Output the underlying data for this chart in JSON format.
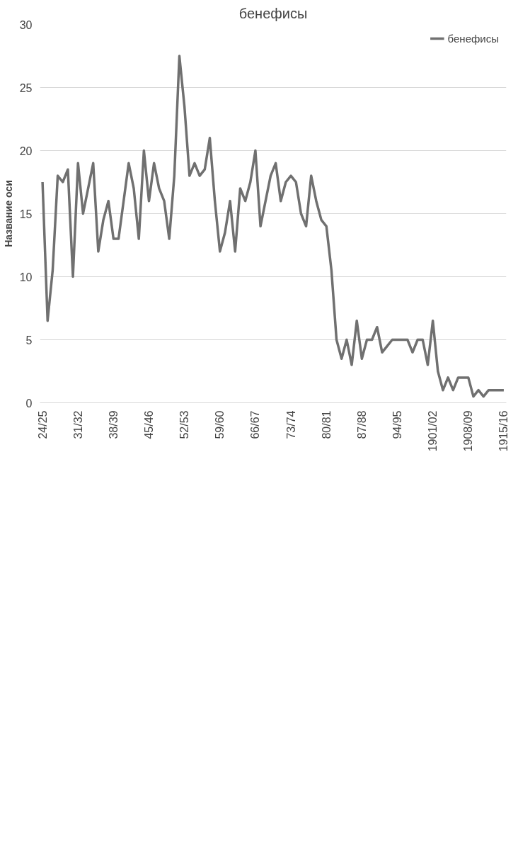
{
  "chart_data": {
    "type": "line",
    "title": "бенефисы",
    "ylabel": "Название оси",
    "categories": [
      "24/25",
      null,
      null,
      null,
      null,
      null,
      null,
      "31/32",
      null,
      null,
      null,
      null,
      null,
      null,
      "38/39",
      null,
      null,
      null,
      null,
      null,
      null,
      "45/46",
      null,
      null,
      null,
      null,
      null,
      null,
      "52/53",
      null,
      null,
      null,
      null,
      null,
      null,
      "59/60",
      null,
      null,
      null,
      null,
      null,
      null,
      "66/67",
      null,
      null,
      null,
      null,
      null,
      null,
      "73/74",
      null,
      null,
      null,
      null,
      null,
      null,
      "80/81",
      null,
      null,
      null,
      null,
      null,
      null,
      "87/88",
      null,
      null,
      null,
      null,
      null,
      null,
      "94/95",
      null,
      null,
      null,
      null,
      null,
      null,
      "1901/02",
      null,
      null,
      null,
      null,
      null,
      null,
      "1908/09",
      null,
      null,
      null,
      null,
      null,
      null,
      "1915/16"
    ],
    "series": [
      {
        "name": "бенефисы",
        "color": "#707070",
        "values": [
          17.5,
          6.5,
          10.5,
          18,
          17.5,
          18.5,
          10,
          19,
          15,
          17,
          19,
          12,
          14.5,
          16,
          13,
          13,
          16,
          19,
          17,
          13,
          20,
          16,
          19,
          17,
          16,
          13,
          18,
          27.5,
          23.5,
          18,
          19,
          18,
          18.5,
          21,
          16,
          12,
          13.5,
          16,
          12,
          17,
          16,
          17.5,
          20,
          14,
          16,
          18,
          19,
          16,
          17.5,
          18,
          17.5,
          15,
          14,
          18,
          16,
          14.5,
          14,
          10.5,
          5,
          3.5,
          5,
          3,
          6.5,
          3.5,
          5,
          5,
          6,
          4,
          4.5,
          5,
          5,
          5,
          5,
          4,
          5,
          5,
          3,
          6.5,
          2.5,
          1,
          2,
          1,
          2,
          2,
          2,
          0.5,
          1,
          0.5,
          1,
          1,
          1,
          1
        ]
      }
    ],
    "ylim": [
      0,
      30
    ],
    "yticks": [
      0,
      5,
      10,
      15,
      20,
      25,
      30
    ],
    "grid": "y",
    "legend": "top right",
    "marker": "none",
    "line_style": "solid"
  }
}
